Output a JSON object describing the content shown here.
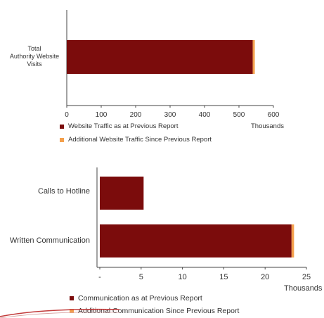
{
  "chart_data": [
    {
      "type": "bar",
      "orientation": "horizontal",
      "stacked": true,
      "categories": [
        "Total Authority Website Visits"
      ],
      "category_lines": [
        "Total",
        "Authority Website",
        "Visits"
      ],
      "series": [
        {
          "name": "Website Traffic as at Previous Report",
          "values": [
            540
          ],
          "color": "#7b0c0c"
        },
        {
          "name": "Additional Website Traffic Since Previous Report",
          "values": [
            6
          ],
          "color": "#f4a04c"
        }
      ],
      "xlim": [
        0,
        600
      ],
      "x_ticks": [
        "0",
        "100",
        "200",
        "300",
        "400",
        "500",
        "600"
      ],
      "units_label": "Thousands",
      "legend_position": "bottom-left",
      "grid": false
    },
    {
      "type": "bar",
      "orientation": "horizontal",
      "stacked": true,
      "categories": [
        "Calls to Hotline",
        "Written Communication"
      ],
      "series": [
        {
          "name": "Communication as at Previous Report",
          "values": [
            5.3,
            23.2
          ],
          "color": "#7b0c0c"
        },
        {
          "name": "Additional Communication Since Previous Report",
          "values": [
            0,
            0.3
          ],
          "color": "#f4a04c"
        }
      ],
      "xlim": [
        0,
        25
      ],
      "x_ticks": [
        "-",
        "5",
        "10",
        "15",
        "20",
        "25"
      ],
      "units_label": "Thousands",
      "legend_position": "bottom-left",
      "grid": false
    }
  ]
}
